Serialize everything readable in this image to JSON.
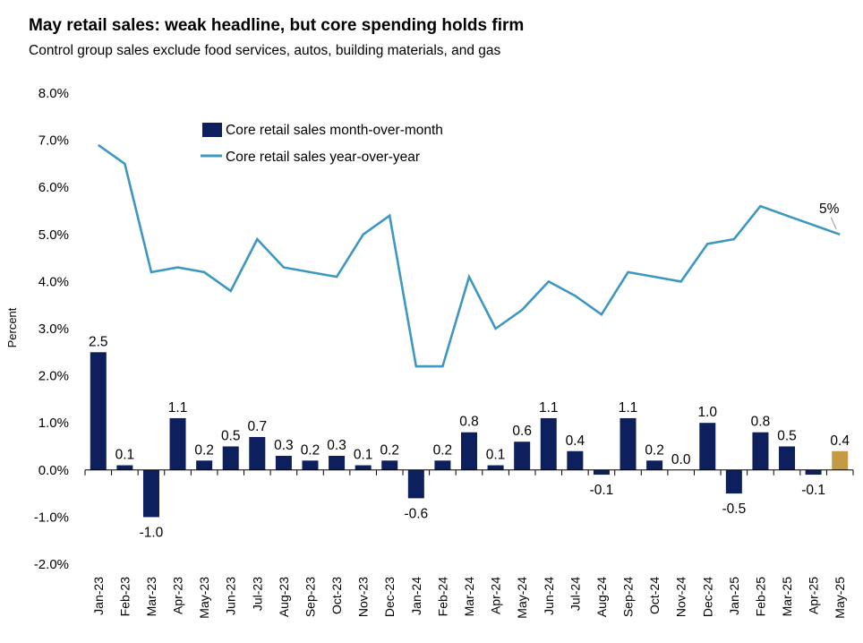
{
  "chart_data": {
    "type": "bar",
    "title": "May retail sales: weak headline, but core spending holds firm",
    "subtitle": "Control group sales exclude food services, autos, building materials, and gas",
    "ylabel": "Percent",
    "xlabel": "",
    "ylim": [
      -2,
      8
    ],
    "yticks": [
      "8.0%",
      "7.0%",
      "6.0%",
      "5.0%",
      "4.0%",
      "3.0%",
      "2.0%",
      "1.0%",
      "0.0%",
      "-1.0%",
      "-2.0%"
    ],
    "ytick_values": [
      8,
      7,
      6,
      5,
      4,
      3,
      2,
      1,
      0,
      -1,
      -2
    ],
    "grid": false,
    "legend": "top-left",
    "categories": [
      "Jan-23",
      "Feb-23",
      "Mar-23",
      "Apr-23",
      "May-23",
      "Jun-23",
      "Jul-23",
      "Aug-23",
      "Sep-23",
      "Oct-23",
      "Nov-23",
      "Dec-23",
      "Jan-24",
      "Feb-24",
      "Mar-24",
      "Apr-24",
      "May-24",
      "Jun-24",
      "Jul-24",
      "Aug-24",
      "Sep-24",
      "Oct-24",
      "Nov-24",
      "Dec-24",
      "Jan-25",
      "Feb-25",
      "Mar-25",
      "Apr-25",
      "May-25"
    ],
    "series": [
      {
        "name": "Core retail sales month-over-month",
        "type": "bar",
        "color": "#0d1f5c",
        "highlight_color": "#c49a45",
        "values": [
          2.5,
          0.1,
          -1.0,
          1.1,
          0.2,
          0.5,
          0.7,
          0.3,
          0.2,
          0.3,
          0.1,
          0.2,
          -0.6,
          0.2,
          0.8,
          0.1,
          0.6,
          1.1,
          0.4,
          -0.1,
          1.1,
          0.2,
          0.0,
          1.0,
          -0.5,
          0.8,
          0.5,
          -0.1,
          0.4
        ],
        "labels": [
          "2.5",
          "0.1",
          "-1.0",
          "1.1",
          "0.2",
          "0.5",
          "0.7",
          "0.3",
          "0.2",
          "0.3",
          "0.1",
          "0.2",
          "-0.6",
          "0.2",
          "0.8",
          "0.1",
          "0.6",
          "1.1",
          "0.4",
          "-0.1",
          "1.1",
          "0.2",
          "0.0",
          "1.0",
          "-0.5",
          "0.8",
          "0.5",
          "-0.1",
          "0.4"
        ]
      },
      {
        "name": "Core retail sales year-over-year",
        "type": "line",
        "color": "#3d97c0",
        "values": [
          6.9,
          6.5,
          4.2,
          4.3,
          4.2,
          3.8,
          4.9,
          4.3,
          4.2,
          4.1,
          5.0,
          5.4,
          2.2,
          2.2,
          4.1,
          3.0,
          3.4,
          4.0,
          3.7,
          3.3,
          4.2,
          4.1,
          4.0,
          4.8,
          4.9,
          5.6,
          5.4,
          5.2,
          5.0
        ]
      }
    ],
    "annotations": [
      {
        "text": "5%",
        "category": "May-25"
      }
    ]
  }
}
